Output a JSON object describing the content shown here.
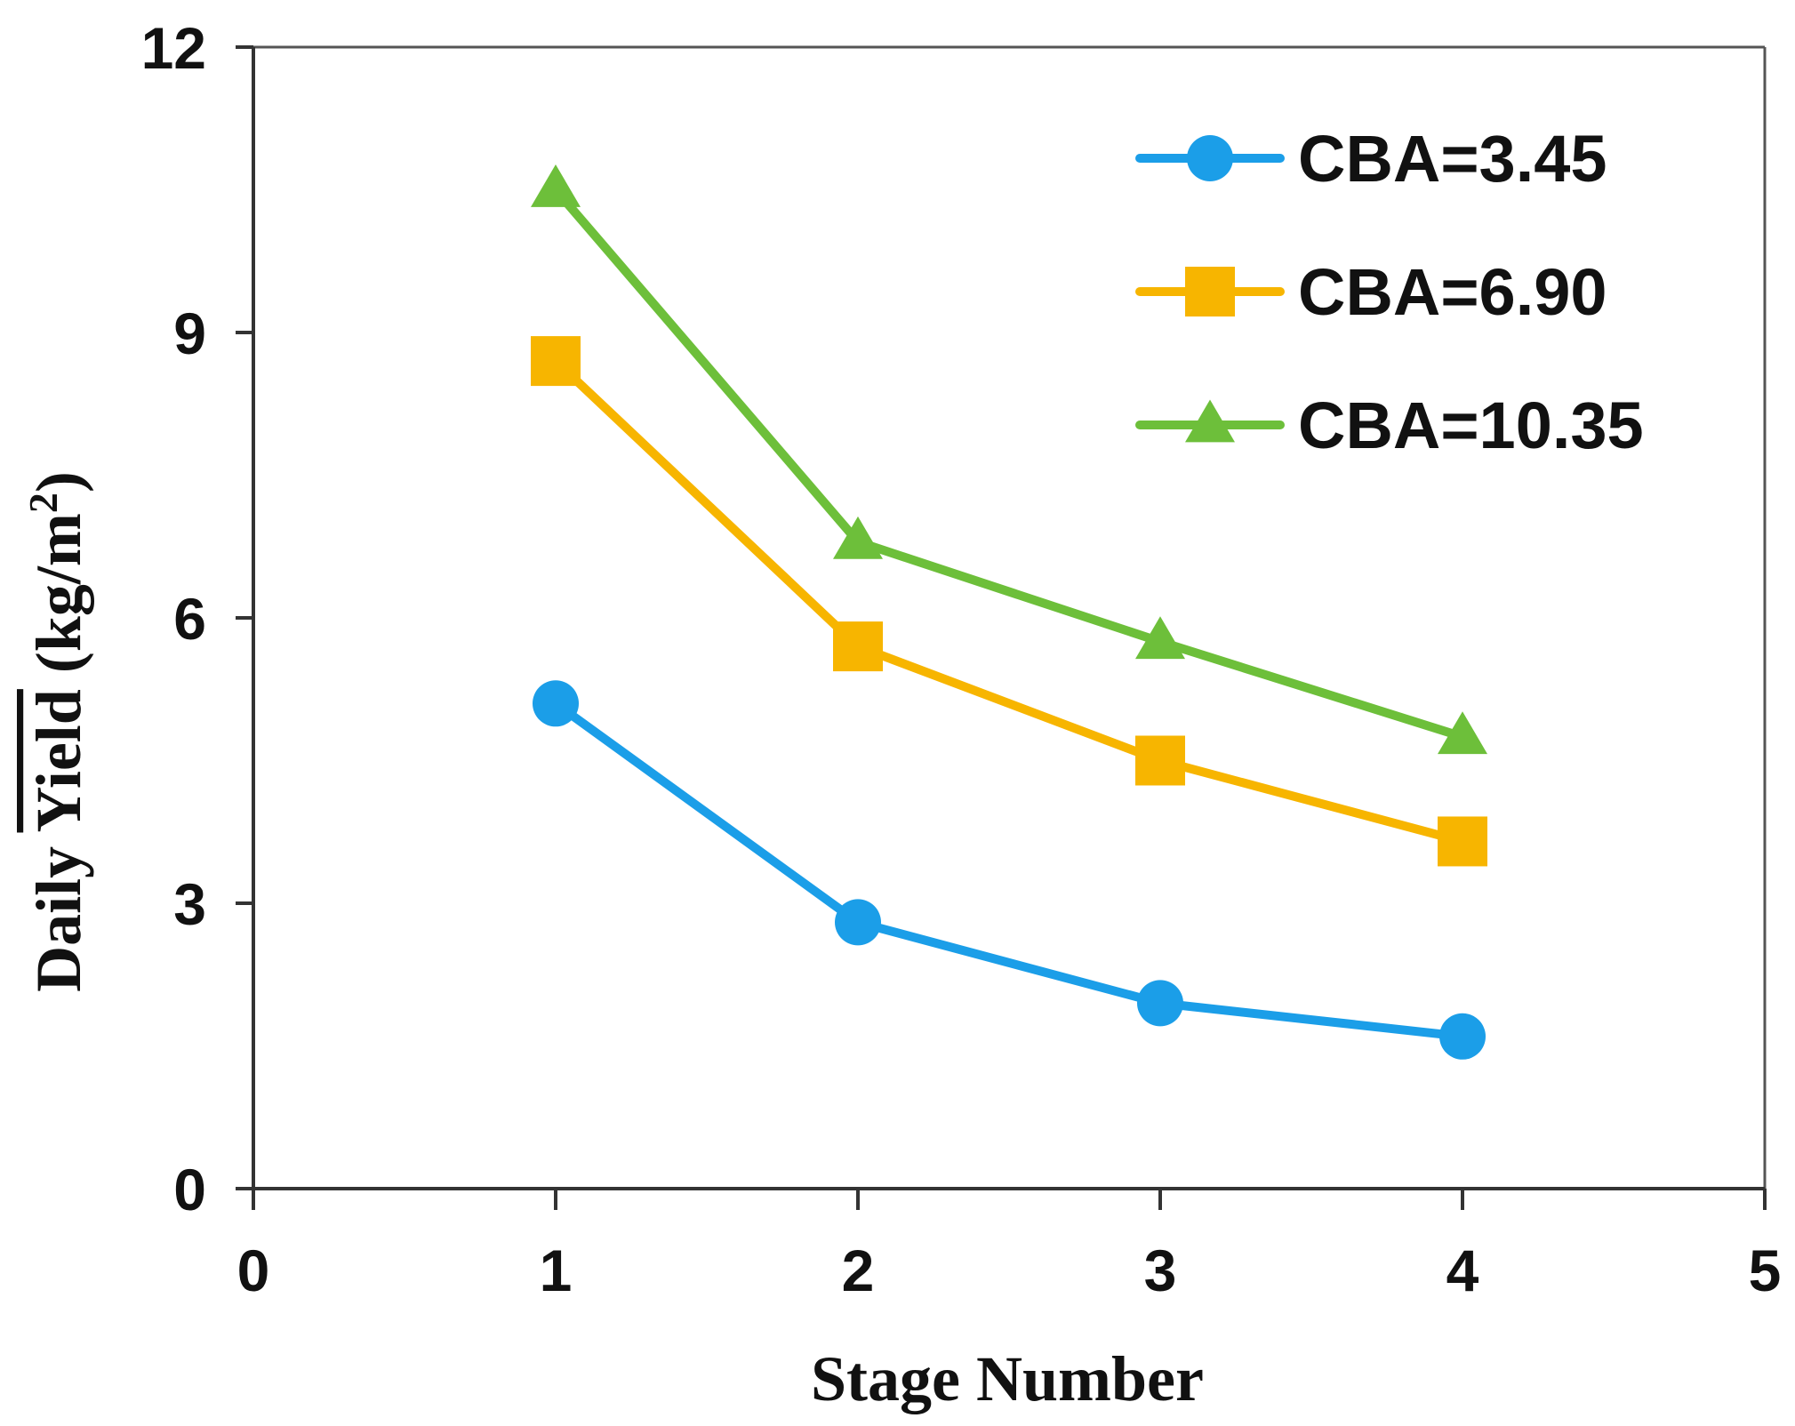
{
  "chart_data": {
    "type": "line",
    "title": "",
    "xlabel": "Stage Number",
    "ylabel": {
      "prefix": "Daily ",
      "main": "Yield",
      "unit": " (kg/m",
      "sup": "2",
      "close": ")"
    },
    "xlim": [
      0,
      5
    ],
    "ylim": [
      0,
      12
    ],
    "xticks": [
      "0",
      "1",
      "2",
      "3",
      "4",
      "5"
    ],
    "yticks": [
      "0",
      "3",
      "6",
      "9",
      "12"
    ],
    "grid": false,
    "legend_position": "top-right",
    "x": [
      1,
      2,
      3,
      4
    ],
    "series": [
      {
        "name": "CBA=3.45",
        "values": [
          5.1,
          2.8,
          1.95,
          1.6
        ],
        "color": "#1b9ee8",
        "marker": "circle"
      },
      {
        "name": "CBA=6.90",
        "values": [
          8.7,
          5.7,
          4.5,
          3.65
        ],
        "color": "#f7b500",
        "marker": "square"
      },
      {
        "name": "CBA=10.35",
        "values": [
          10.5,
          6.8,
          5.75,
          4.75
        ],
        "color": "#6dbf3a",
        "marker": "triangle"
      }
    ]
  }
}
